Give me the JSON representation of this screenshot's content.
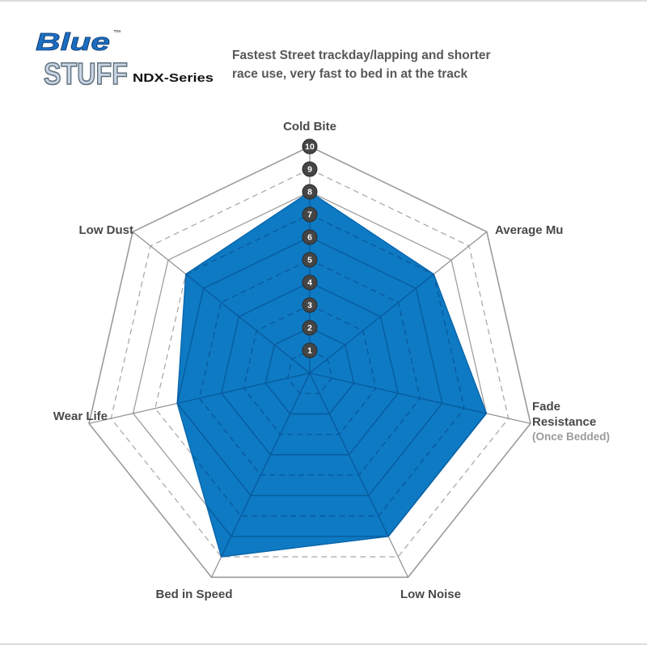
{
  "logo": {
    "word_blue": "Blue",
    "word_stuff": "STUFF",
    "trademark": "™",
    "series_name": "NDX-Series"
  },
  "header": {
    "lines": [
      "Fastest Street trackday/lapping and shorter",
      "race use, very fast to bed in at the track"
    ]
  },
  "chart_data": {
    "type": "radar",
    "title": "EBC Bluestuff NDX-Series brake pad performance radar",
    "categories": [
      "Cold Bite",
      "Average Mu",
      "Fade Resistance",
      "Low Noise",
      "Bed in Speed",
      "Wear Life",
      "Low Dust"
    ],
    "fade_note": "(Once Bedded)",
    "values": [
      8,
      7,
      8,
      8,
      9,
      6,
      7
    ],
    "scale": {
      "min": 0,
      "max": 10,
      "ticks": [
        1,
        2,
        3,
        4,
        5,
        6,
        7,
        8,
        9,
        10
      ]
    },
    "layout": {
      "axes_count": 7,
      "start_axis": "top",
      "grid": "concentric heptagons 1-10, even rings solid, odd rings dashed",
      "legend": "none"
    },
    "colors": {
      "series_fill": "#0e7ac4",
      "series_edge": "#0c67ab",
      "grid_solid": "#9b9b9b",
      "grid_dashed": "#a8a8a8",
      "spoke": "#8f8f8f",
      "grid_inner": "#085c9e",
      "badge_fill": "#454545",
      "badge_edge": "#2b2b2b",
      "badge_text": "#ffffff",
      "logo_blue": "#1b6ec2",
      "logo_blue_outline": "#123f73",
      "logo_stuff_fill": "#c9d4e2",
      "logo_stuff_outline": "#5f707f",
      "series_text": "#111111"
    }
  }
}
